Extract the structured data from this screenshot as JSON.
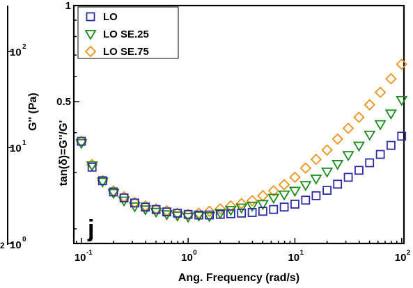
{
  "chart_data": {
    "type": "scatter",
    "title": "",
    "panel_label": "j",
    "xlabel": "Ang. Frequency (rad/s)",
    "ylabel": "tan(δ)=G''/G'",
    "left_axis_label": "G'' (Pa)",
    "x_scale": "log",
    "y_scale": "log",
    "xlim": [
      0.085,
      105
    ],
    "ylim": [
      0.18,
      1.0
    ],
    "x_ticks": [
      {
        "base": "10",
        "exp": "-1",
        "value": 0.1
      },
      {
        "base": "10",
        "exp": "0",
        "value": 1
      },
      {
        "base": "10",
        "exp": "1",
        "value": 10
      },
      {
        "base": "10",
        "exp": "2",
        "value": 100
      }
    ],
    "y_ticks": [
      {
        "label": "1",
        "value": 1.0
      },
      {
        "label": "0.5",
        "value": 0.5
      }
    ],
    "left_axis_ticks": [
      {
        "base": "10",
        "exp": "2"
      },
      {
        "base": "10",
        "exp": "1"
      },
      {
        "base": "10",
        "exp": "0"
      }
    ],
    "left_edge_fragment": "2",
    "legend_position": "top-left",
    "series": [
      {
        "name": "LO",
        "marker": "square",
        "color": "#2b2ba3",
        "x": [
          0.1,
          0.126,
          0.158,
          0.2,
          0.251,
          0.316,
          0.398,
          0.501,
          0.631,
          0.794,
          1.0,
          1.26,
          1.58,
          2.0,
          2.51,
          3.16,
          3.98,
          5.01,
          6.31,
          7.94,
          10.0,
          12.6,
          15.8,
          20.0,
          25.1,
          31.6,
          39.8,
          50.1,
          63.1,
          79.4,
          100.0
        ],
        "y": [
          0.376,
          0.312,
          0.283,
          0.261,
          0.25,
          0.241,
          0.234,
          0.23,
          0.226,
          0.224,
          0.222,
          0.221,
          0.221,
          0.222,
          0.223,
          0.224,
          0.225,
          0.227,
          0.23,
          0.234,
          0.239,
          0.246,
          0.254,
          0.264,
          0.276,
          0.29,
          0.305,
          0.322,
          0.342,
          0.365,
          0.39
        ]
      },
      {
        "name": "LO SE.25",
        "marker": "triangle-down",
        "color": "#1a8a1a",
        "x": [
          0.1,
          0.126,
          0.158,
          0.2,
          0.251,
          0.316,
          0.398,
          0.501,
          0.631,
          0.794,
          1.0,
          1.26,
          1.58,
          2.0,
          2.51,
          3.16,
          3.98,
          5.01,
          6.31,
          7.94,
          10.0,
          12.6,
          15.8,
          20.0,
          25.1,
          31.6,
          39.8,
          50.1,
          63.1,
          79.4,
          100.0
        ],
        "y": [
          0.371,
          0.316,
          0.281,
          0.259,
          0.245,
          0.235,
          0.23,
          0.226,
          0.222,
          0.22,
          0.218,
          0.22,
          0.219,
          0.224,
          0.229,
          0.233,
          0.236,
          0.239,
          0.25,
          0.256,
          0.263,
          0.274,
          0.287,
          0.302,
          0.319,
          0.34,
          0.364,
          0.394,
          0.425,
          0.459,
          0.506
        ]
      },
      {
        "name": "LO SE.75",
        "marker": "diamond",
        "color": "#f0921e",
        "x": [
          0.1,
          0.126,
          0.158,
          0.2,
          0.251,
          0.316,
          0.398,
          0.501,
          0.631,
          0.794,
          1.0,
          1.26,
          1.58,
          2.0,
          2.51,
          3.16,
          3.98,
          5.01,
          6.31,
          7.94,
          10.0,
          12.6,
          15.8,
          20.0,
          25.1,
          31.6,
          39.8,
          50.1,
          63.1,
          79.4,
          100.0
        ],
        "y": [
          0.376,
          0.318,
          0.283,
          0.263,
          0.252,
          0.242,
          0.236,
          0.231,
          0.228,
          0.224,
          0.222,
          0.224,
          0.227,
          0.231,
          0.236,
          0.24,
          0.245,
          0.254,
          0.263,
          0.275,
          0.29,
          0.31,
          0.33,
          0.353,
          0.382,
          0.413,
          0.447,
          0.489,
          0.535,
          0.59,
          0.655
        ]
      }
    ]
  }
}
